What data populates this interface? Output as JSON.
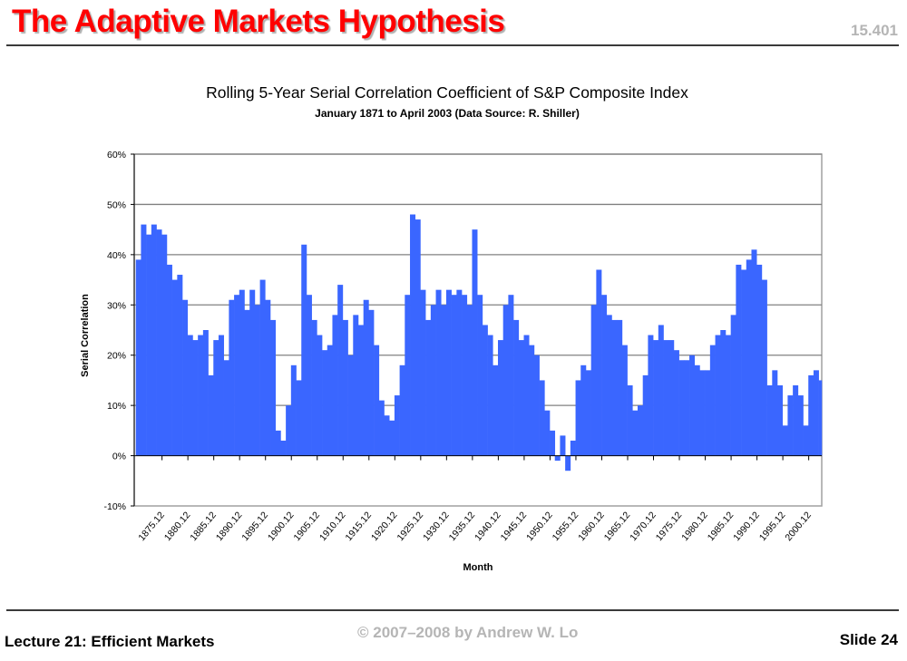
{
  "slide": {
    "title": "The Adaptive Markets Hypothesis",
    "course": "15.401",
    "footer_left": "Lecture 21: Efficient Markets",
    "footer_center": "© 2007–2008 by Andrew W. Lo",
    "footer_right": "Slide 24"
  },
  "colors": {
    "title": "#ff0000",
    "series": "#3a66ff",
    "grid": "#808080"
  },
  "chart_data": {
    "type": "area",
    "title": "Rolling 5-Year Serial Correlation Coefficient of S&P Composite Index",
    "subtitle": "January 1871 to April 2003 (Data Source: R. Shiller)",
    "xlabel": "Month",
    "ylabel": "Serial Correlation",
    "ylim": [
      -10,
      60
    ],
    "yticks": [
      "-10%",
      "0%",
      "10%",
      "20%",
      "30%",
      "40%",
      "50%",
      "60%"
    ],
    "ytick_values": [
      -10,
      0,
      10,
      20,
      30,
      40,
      50,
      60
    ],
    "xticks": [
      "1875.12",
      "1880.12",
      "1885.12",
      "1890.12",
      "1895.12",
      "1900.12",
      "1905.12",
      "1910.12",
      "1915.12",
      "1920.12",
      "1925.12",
      "1930.12",
      "1935.12",
      "1940.12",
      "1945.12",
      "1950.12",
      "1955.12",
      "1960.12",
      "1965.12",
      "1970.12",
      "1975.12",
      "1980.12",
      "1985.12",
      "1990.12",
      "1995.12",
      "2000.12"
    ],
    "grid": "horizontal",
    "legend": "none",
    "series_unit": "%",
    "x": [
      1871,
      1872,
      1873,
      1874,
      1875,
      1876,
      1877,
      1878,
      1879,
      1880,
      1881,
      1882,
      1883,
      1884,
      1885,
      1886,
      1887,
      1888,
      1889,
      1890,
      1891,
      1892,
      1893,
      1894,
      1895,
      1896,
      1897,
      1898,
      1899,
      1900,
      1901,
      1902,
      1903,
      1904,
      1905,
      1906,
      1907,
      1908,
      1909,
      1910,
      1911,
      1912,
      1913,
      1914,
      1915,
      1916,
      1917,
      1918,
      1919,
      1920,
      1921,
      1922,
      1923,
      1924,
      1925,
      1926,
      1927,
      1928,
      1929,
      1930,
      1931,
      1932,
      1933,
      1934,
      1935,
      1936,
      1937,
      1938,
      1939,
      1940,
      1941,
      1942,
      1943,
      1944,
      1945,
      1946,
      1947,
      1948,
      1949,
      1950,
      1951,
      1952,
      1953,
      1954,
      1955,
      1956,
      1957,
      1958,
      1959,
      1960,
      1961,
      1962,
      1963,
      1964,
      1965,
      1966,
      1967,
      1968,
      1969,
      1970,
      1971,
      1972,
      1973,
      1974,
      1975,
      1976,
      1977,
      1978,
      1979,
      1980,
      1981,
      1982,
      1983,
      1984,
      1985,
      1986,
      1987,
      1988,
      1989,
      1990,
      1991,
      1992,
      1993,
      1994,
      1995,
      1996,
      1997,
      1998,
      1999,
      2000,
      2001,
      2002,
      2003
    ],
    "values": [
      39,
      46,
      44,
      46,
      45,
      44,
      38,
      35,
      36,
      31,
      24,
      23,
      24,
      25,
      16,
      23,
      24,
      19,
      31,
      32,
      33,
      29,
      33,
      30,
      35,
      31,
      27,
      5,
      3,
      10,
      18,
      15,
      42,
      32,
      27,
      24,
      21,
      22,
      28,
      34,
      27,
      20,
      28,
      26,
      31,
      29,
      22,
      11,
      8,
      7,
      12,
      18,
      32,
      48,
      47,
      33,
      27,
      30,
      33,
      30,
      33,
      32,
      33,
      32,
      30,
      45,
      32,
      26,
      24,
      18,
      23,
      30,
      32,
      27,
      23,
      24,
      22,
      20,
      15,
      9,
      5,
      -1,
      4,
      -3,
      3,
      15,
      18,
      17,
      30,
      37,
      32,
      28,
      27,
      27,
      22,
      14,
      9,
      10,
      16,
      24,
      23,
      26,
      23,
      23,
      21,
      19,
      19,
      20,
      18,
      17,
      17,
      22,
      24,
      25,
      24,
      28,
      38,
      37,
      39,
      41,
      38,
      35,
      14,
      17,
      14,
      6,
      12,
      14,
      12,
      6,
      16,
      17,
      15
    ]
  }
}
